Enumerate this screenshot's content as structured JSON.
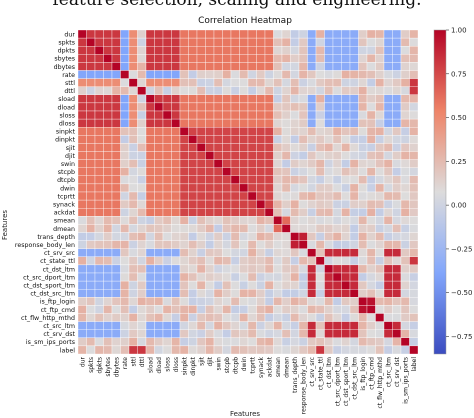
{
  "caption": "feature selection, scaling and engineering.",
  "chart_data": {
    "type": "heatmap",
    "title": "Correlation Heatmap",
    "xlabel": "Features",
    "ylabel": "Features",
    "features": [
      "dur",
      "spkts",
      "dpkts",
      "sbytes",
      "dbytes",
      "rate",
      "sttl",
      "dttl",
      "sload",
      "dload",
      "sloss",
      "dloss",
      "sinpkt",
      "dinpkt",
      "sjit",
      "djit",
      "swin",
      "stcpb",
      "dtcpb",
      "dwin",
      "tcprtt",
      "synack",
      "ackdat",
      "smean",
      "dmean",
      "trans_depth",
      "response_body_len",
      "ct_srv_src",
      "ct_state_ttl",
      "ct_dst_ltm",
      "ct_src_dport_ltm",
      "ct_dst_sport_ltm",
      "ct_dst_src_ltm",
      "is_ftp_login",
      "ct_ftp_cmd",
      "ct_flw_http_mthd",
      "ct_src_ltm",
      "ct_srv_dst",
      "is_sm_ips_ports",
      "label"
    ],
    "groups": {
      "volume": [
        0,
        1,
        2,
        3,
        4,
        8,
        9,
        10,
        11
      ],
      "timing": [
        12,
        13,
        14,
        15,
        16,
        17,
        18,
        19,
        20,
        21,
        22
      ],
      "size": [
        23,
        24
      ],
      "connection": [
        27,
        29,
        30,
        31,
        32,
        36,
        37
      ],
      "ftp": [
        33,
        34
      ]
    },
    "correlation_levels": {
      "within_volume": 0.8,
      "within_timing": 0.75,
      "volume_timing": 0.55,
      "within_connection": 0.85,
      "within_ftp": 0.95,
      "connection_vs_volume": -0.45,
      "rate_vs_volume": -0.5,
      "sttl_vs_volume": 0.45,
      "label_vs_sttl": 0.8,
      "ct_state_ttl_vs_label": 0.8,
      "response_body_len_vs_trans_depth": 0.9,
      "baseline": 0.05
    },
    "colorbar": {
      "min": -0.85,
      "max": 1.0,
      "ticks": [
        1.0,
        0.75,
        0.5,
        0.25,
        0.0,
        -0.25,
        -0.5,
        -0.75
      ],
      "tick_labels": [
        "1.00",
        "0.75",
        "0.50",
        "0.25",
        "0.00",
        "−0.25",
        "−0.50",
        "−0.75"
      ],
      "colormap": "coolwarm"
    }
  }
}
